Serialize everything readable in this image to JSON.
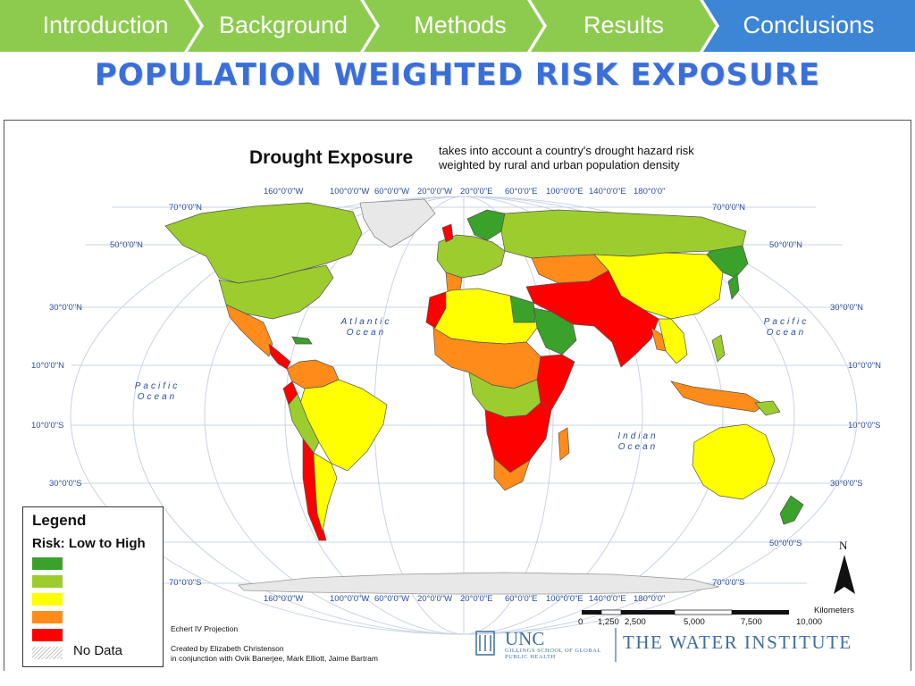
{
  "nav": {
    "items": [
      {
        "label": "Introduction"
      },
      {
        "label": "Background"
      },
      {
        "label": "Methods"
      },
      {
        "label": "Results"
      },
      {
        "label": "Conclusions"
      }
    ],
    "active_index": 4,
    "colors": {
      "inactive": "#8ccb4e",
      "active": "#3d86d6",
      "divider": "#ffffff"
    }
  },
  "slide": {
    "title": "POPULATION WEIGHTED RISK EXPOSURE"
  },
  "map": {
    "title": "Drought Exposure",
    "subtitle": "takes into account a country's drought hazard risk weighted by rural and urban population density",
    "projection": "Echert IV Projection",
    "credits": [
      "Created by Elizabeth Christenson",
      "in conjunction with Ovik Banerjee, Mark Elliott, Jaime Bartram"
    ],
    "longitude_labels": [
      "160°0'0\"W",
      "100°0'0\"W",
      "60°0'0\"W",
      "20°0'0\"W",
      "20°0'0\"E",
      "60°0'0\"E",
      "100°0'0\"E",
      "140°0'0\"E",
      "180°0'0\""
    ],
    "latitude_labels": {
      "north_70": "70°0'0\"N",
      "north_50": "50°0'0\"N",
      "north_30": "30°0'0\"N",
      "north_10": "10°0'0\"N",
      "south_10": "10°0'0\"S",
      "south_30": "30°0'0\"S",
      "south_50": "50°0'0\"S",
      "south_70": "70°0'0\"S"
    },
    "oceans": {
      "atlantic": "Atlantic\nOcean",
      "pacific_west": "Pacific\nOcean",
      "pacific_east": "Pacific\nOcean",
      "indian": "Indian\nOcean"
    },
    "legend": {
      "title": "Legend",
      "subtitle": "Risk: Low to High",
      "classes": [
        "#3aa12a",
        "#9ccc2e",
        "#ffff00",
        "#ff8c1a",
        "#ff0000"
      ],
      "no_data_label": "No Data"
    },
    "scale_bar": {
      "unit": "Kilometers",
      "ticks": [
        "0",
        "1,250",
        "2,500",
        "5,000",
        "7,500",
        "10,000"
      ]
    },
    "north_arrow": "N",
    "logos": {
      "unc": "UNC",
      "unc_sub": "GILLINGS SCHOOL OF GLOBAL PUBLIC HEALTH",
      "water_institute": "THE WATER INSTITUTE"
    },
    "land_colors": {
      "risk1": "#3aa12a",
      "risk2": "#9ccc2e",
      "risk3": "#ffff00",
      "risk4": "#ff8c1a",
      "risk5": "#ff0000",
      "graticule": "#c8d3e6",
      "border": "#555555"
    }
  }
}
